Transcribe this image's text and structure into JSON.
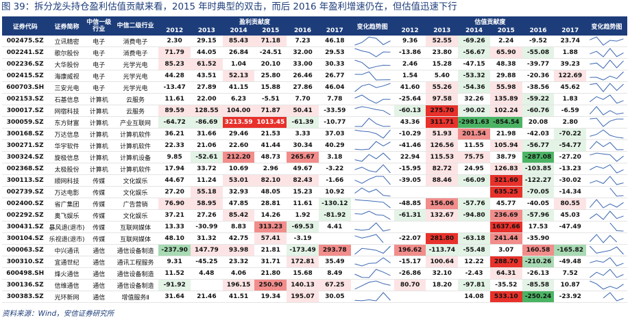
{
  "title": "图 39：拆分龙头持仓盈利估值贡献来看，2015 年时典型的双击，而后 2016 年盈利增速仍在，但估值迅速下行",
  "source": "资料来源：Wind，安信证券研究所",
  "headers": {
    "row1": [
      "证券代码",
      "证券简称",
      "中信一级行业",
      "中信二级行业",
      "盈利贡献度",
      "变化趋势图",
      "估值贡献度",
      "变化趋势图"
    ],
    "years": [
      "2012",
      "2013",
      "2014",
      "2015",
      "2016",
      "2017"
    ]
  },
  "colors": {
    "header": "#1d3d7a",
    "red_strong": "#e8312b",
    "red_mid": "#f18d8b",
    "red_light": "#fde4e4",
    "green_strong": "#4bb464",
    "green_mid": "#a8dab3",
    "green_light": "#e3f3e6",
    "spark": "#3f6ab3"
  },
  "rows": [
    {
      "code": "002475.SZ",
      "name": "立讯精密",
      "ind1": "电子",
      "ind2": "消费电子",
      "profit": [
        "2.30",
        "29.15",
        "85.43",
        "71.18",
        "7.23",
        "46.18"
      ],
      "val": [
        "9.36",
        "52.55",
        "-69.26",
        "2.24",
        "-9.52",
        "23.74"
      ]
    },
    {
      "code": "002241.SZ",
      "name": "歌尔股份",
      "ind1": "电子",
      "ind2": "消费电子",
      "profit": [
        "71.79",
        "44.05",
        "26.84",
        "-24.51",
        "32.00",
        "29.53"
      ],
      "val": [
        "-13.86",
        "23.80",
        "-56.67",
        "65.90",
        "-55.08",
        "1.88"
      ]
    },
    {
      "code": "002236.SZ",
      "name": "大华股份",
      "ind1": "电子",
      "ind2": "光学光电",
      "profit": [
        "85.23",
        "61.52",
        "1.04",
        "20.10",
        "33.00",
        "30.33"
      ],
      "val": [
        "2.46",
        "15.28",
        "-47.15",
        "48.38",
        "-39.77",
        "39.23"
      ]
    },
    {
      "code": "002415.SZ",
      "name": "海康威视",
      "ind1": "电子",
      "ind2": "光学光电",
      "profit": [
        "44.28",
        "43.51",
        "52.13",
        "25.80",
        "26.46",
        "26.77"
      ],
      "val": [
        "1.54",
        "5.40",
        "-53.32",
        "29.88",
        "-20.36",
        "122.69"
      ]
    },
    {
      "code": "600703.SH",
      "name": "三安光电",
      "ind1": "电子",
      "ind2": "光学光电",
      "profit": [
        "-13.47",
        "27.89",
        "41.15",
        "15.88",
        "27.86",
        "46.04"
      ],
      "val": [
        "41.60",
        "55.26",
        "-54.36",
        "55.98",
        "-38.56",
        "45.62"
      ]
    },
    {
      "code": "002153.SZ",
      "name": "石基信息",
      "ind1": "计算机",
      "ind2": "云服务",
      "profit": [
        "11.61",
        "22.00",
        "6.23",
        "-5.51",
        "7.70",
        "7.78"
      ],
      "val": [
        "-25.64",
        "97.58",
        "32.26",
        "135.89",
        "-59.22",
        "1.83"
      ]
    },
    {
      "code": "300017.SZ",
      "name": "网宿科技",
      "ind1": "计算机",
      "ind2": "云服务",
      "profit": [
        "89.59",
        "128.55",
        "104.00",
        "71.87",
        "50.41",
        "-33.59"
      ],
      "val": [
        "-60.13",
        "275.70",
        "-90.02",
        "102.24",
        "-60.76",
        "-6.59"
      ]
    },
    {
      "code": "300059.SZ",
      "name": "东方财富",
      "ind1": "计算机",
      "ind2": "产业互联网",
      "profit": [
        "-64.72",
        "-86.69",
        "3213.59",
        "1013.45",
        "-61.39",
        "-10.77"
      ],
      "val": [
        "43.36",
        "311.71",
        "-2981.63",
        "-854.54",
        "20.08",
        "2.80"
      ]
    },
    {
      "code": "300168.SZ",
      "name": "万达信息",
      "ind1": "计算机",
      "ind2": "计算机软件",
      "profit": [
        "36.21",
        "31.66",
        "29.46",
        "21.53",
        "3.33",
        "37.03"
      ],
      "val": [
        "-10.29",
        "51.93",
        "201.54",
        "21.98",
        "-42.03",
        "-70.22"
      ]
    },
    {
      "code": "300271.SZ",
      "name": "华宇软件",
      "ind1": "计算机",
      "ind2": "计算机软件",
      "profit": [
        "22.33",
        "21.06",
        "22.60",
        "41.44",
        "30.34",
        "40.29"
      ],
      "val": [
        "-41.46",
        "126.56",
        "11.55",
        "105.94",
        "-56.77",
        "-54.77"
      ]
    },
    {
      "code": "300324.SZ",
      "name": "旋极信息",
      "ind1": "计算机",
      "ind2": "计算机设备",
      "profit": [
        "9.85",
        "-52.61",
        "212.20",
        "48.73",
        "265.67",
        "3.18"
      ],
      "val": [
        "22.94",
        "115.53",
        "75.75",
        "38.79",
        "-287.08",
        "-27.20"
      ]
    },
    {
      "code": "002368.SZ",
      "name": "太极股份",
      "ind1": "计算机",
      "ind2": "计算机软件",
      "profit": [
        "17.94",
        "33.72",
        "10.69",
        "2.96",
        "49.67",
        "-3.22"
      ],
      "val": [
        "-15.95",
        "82.72",
        "24.95",
        "126.83",
        "-103.85",
        "-13.23"
      ]
    },
    {
      "code": "300113.SZ",
      "name": "顺网科技",
      "ind1": "传媒",
      "ind2": "文化娱乐",
      "profit": [
        "44.67",
        "11.24",
        "53.01",
        "82.10",
        "82.43",
        "-1.66"
      ],
      "val": [
        "-39.05",
        "88.46",
        "-66.09",
        "321.60",
        "-122.27",
        "-30.02"
      ]
    },
    {
      "code": "002739.SZ",
      "name": "万达电影",
      "ind1": "传媒",
      "ind2": "文化娱乐",
      "profit": [
        "27.20",
        "55.18",
        "32.93",
        "48.05",
        "15.23",
        "10.92"
      ],
      "val": [
        "",
        "",
        "",
        "635.25",
        "-70.05",
        "-14.34"
      ]
    },
    {
      "code": "002400.SZ",
      "name": "省广集团",
      "ind1": "传媒",
      "ind2": "广告营销",
      "profit": [
        "76.90",
        "58.95",
        "47.85",
        "28.81",
        "11.61",
        "-130.12"
      ],
      "val": [
        "-48.85",
        "156.06",
        "-57.76",
        "45.77",
        "-40.05",
        "80.55"
      ]
    },
    {
      "code": "002292.SZ",
      "name": "奥飞娱乐",
      "ind1": "传媒",
      "ind2": "文化娱乐",
      "profit": [
        "37.21",
        "27.26",
        "85.42",
        "14.26",
        "1.92",
        "-81.92"
      ],
      "val": [
        "-61.31",
        "132.67",
        "-94.80",
        "236.69",
        "-57.96",
        "45.03"
      ]
    },
    {
      "code": "300431.SZ",
      "name": "暴风退(退市)",
      "ind1": "传媒",
      "ind2": "互联网媒体",
      "profit": [
        "13.33",
        "-30.99",
        "8.83",
        "313.23",
        "-69.53",
        "4.41"
      ],
      "val": [
        "",
        "",
        "",
        "1637.66",
        "17.53",
        "-47.49"
      ]
    },
    {
      "code": "300104.SZ",
      "name": "乐视退(退市)",
      "ind1": "传媒",
      "ind2": "互联网媒体",
      "profit": [
        "48.10",
        "31.32",
        "42.75",
        "57.41",
        "-3.19",
        ""
      ],
      "val": [
        "-22.07",
        "281.80",
        "-63.18",
        "241.44",
        "-35.90",
        ""
      ]
    },
    {
      "code": "000063.SZ",
      "name": "中兴通讯",
      "ind1": "通信",
      "ind2": "通信设备制造",
      "profit": [
        "-237.90",
        "147.79",
        "93.98",
        "21.81",
        "-173.49",
        "293.78"
      ],
      "val": [
        "196.62",
        "-113.74",
        "-55.48",
        "3.07",
        "160.58",
        "-165.82"
      ]
    },
    {
      "code": "300310.SZ",
      "name": "宜通世纪",
      "ind1": "通信",
      "ind2": "通讯工程服务",
      "profit": [
        "9.31",
        "-45.25",
        "23.32",
        "31.71",
        "172.81",
        "35.49"
      ],
      "val": [
        "-15.17",
        "100.64",
        "12.22",
        "288.70",
        "-210.26",
        "-49.48"
      ]
    },
    {
      "code": "600498.SH",
      "name": "烽火通信",
      "ind1": "通信",
      "ind2": "通信设备制造",
      "profit": [
        "11.52",
        "4.48",
        "4.06",
        "21.80",
        "15.68",
        "8.49"
      ],
      "val": [
        "-26.86",
        "32.10",
        "-2.43",
        "64.31",
        "-26.13",
        "7.52"
      ]
    },
    {
      "code": "300136.SZ",
      "name": "信维通信",
      "ind1": "通信",
      "ind2": "通信设备制造",
      "profit": [
        "-91.92",
        "",
        "196.15",
        "250.90",
        "140.13",
        "67.25"
      ],
      "val": [
        "80.70",
        "18.20",
        "-97.81",
        "-35.52",
        "-85.58",
        "10.87"
      ]
    },
    {
      "code": "300383.SZ",
      "name": "光环新网",
      "ind1": "通信",
      "ind2": "增值服务Ⅱ",
      "profit": [
        "31.64",
        "21.46",
        "41.51",
        "19.34",
        "195.07",
        "30.05"
      ],
      "val": [
        "",
        "",
        "14.08",
        "533.10",
        "-250.24",
        "-23.92"
      ]
    }
  ]
}
